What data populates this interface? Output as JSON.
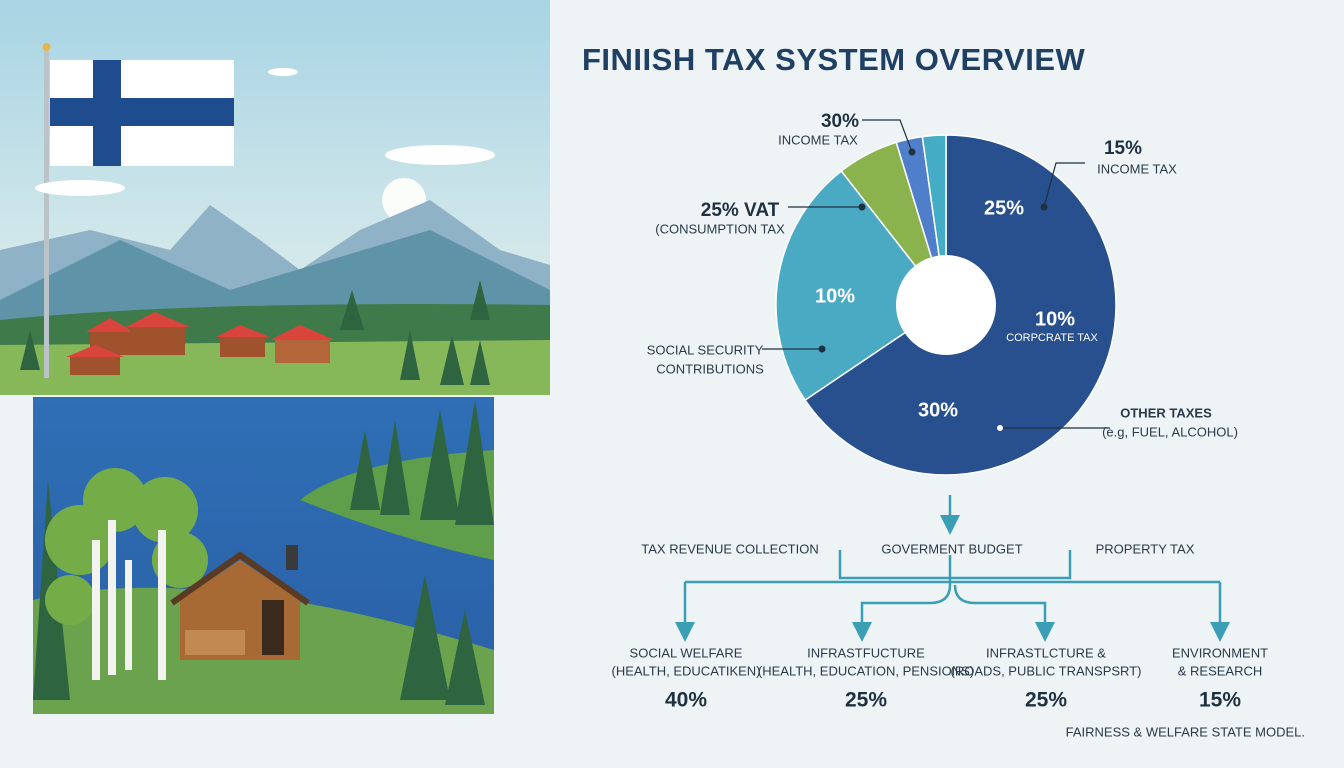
{
  "title": "FINIISH TAX SYSTEM OVERVIEW",
  "pie": {
    "slice_labels": [
      "25%",
      "10%",
      "10%",
      "30%"
    ],
    "slice_sublabel": "CORPCRATE TAX",
    "callouts": [
      {
        "value": "30%",
        "label": "INCOME TAX"
      },
      {
        "value": "15%",
        "label": "INCOME TAX"
      },
      {
        "value": "25% VAT",
        "label": "(CONSUMPTION TAX"
      },
      {
        "value": "SOCIAL SECURITY",
        "label": "CONTRIBUTIONS"
      },
      {
        "value": "OTHER TAXES",
        "label": "(e.g, FUEL, ALCOHOL)"
      }
    ]
  },
  "flow": {
    "top": [
      "TAX REVENUE COLLECTION",
      "GOVERMENT BUDGET",
      "PROPERTY TAX"
    ],
    "branches": [
      {
        "title": "SOCIAL WELFARE",
        "detail": "(HEALTH, EDUCATIKEN)",
        "share": "40%"
      },
      {
        "title": "INFRASTFUCTURE",
        "detail": "(HEALTH, EDUCATION, PENSIONS)",
        "share": "25%"
      },
      {
        "title": "INFRASTLCTURE &",
        "detail": "(ROADS, PUBLIC TRANSPSRT)",
        "share": "25%"
      },
      {
        "title": "ENVIRONMENT",
        "detail": "& RESEARCH",
        "share": "15%"
      }
    ]
  },
  "footer": "FAIRNESS & WELFARE STATE MODEL."
}
